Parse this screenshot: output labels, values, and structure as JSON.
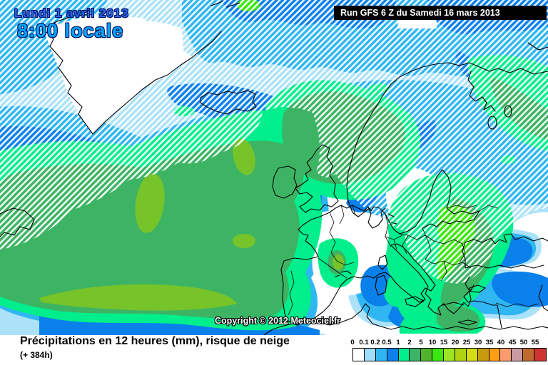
{
  "header": {
    "date": "Lundi 1 avril 2013",
    "time": "8:00 locale",
    "run": "Run GFS 6 Z du Samedi 16 mars 2013"
  },
  "map": {
    "copyright": "Copyright © 2012 Meteociel.fr"
  },
  "caption": {
    "title": "Précipitations en 12 heures (mm), risque de neige",
    "forecast": "(+ 384h)"
  },
  "legend": {
    "values": [
      "0",
      "0.1",
      "0.2",
      "0.5",
      "1",
      "2",
      "5",
      "10",
      "15",
      "20",
      "25",
      "30",
      "35",
      "40",
      "45",
      "50",
      "55"
    ],
    "colors": [
      "#FFFFFF",
      "#9EDEF8",
      "#2FB6F2",
      "#0B80EA",
      "#00EE8C",
      "#3CB467",
      "#51B42D",
      "#3CE60F",
      "#9CE621",
      "#AFD211",
      "#D5DC14",
      "#C89B0F",
      "#FF9E14",
      "#FC9B6E",
      "#C99CA3",
      "#C26A2E",
      "#CC3532"
    ]
  },
  "colors": {
    "rain_light": "#ACE2F9",
    "rain_moderate": "#30B6F1",
    "rain_heavy": "#0A80EA",
    "rain_1mm": "#00EE8C",
    "rain_2mm": "#3CB464",
    "rain_5mm": "#76C32A",
    "rain_10mm": "#3CE60F",
    "snow_hatch": "#FFFFFF",
    "coastline": "#000000"
  }
}
